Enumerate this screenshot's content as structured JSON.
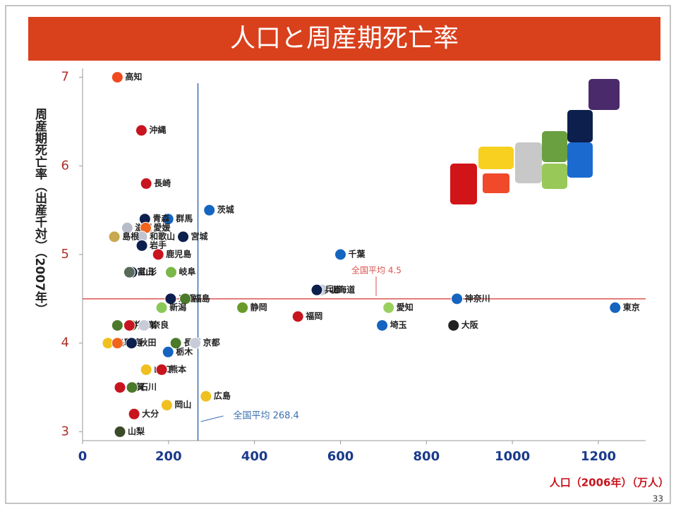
{
  "chart_data": {
    "type": "scatter",
    "title": "人口と周産期死亡率",
    "y_label": "周産期死亡率（出産千対）（2007年）",
    "x_label": "人口（2006年）（万人）",
    "page_number": "33",
    "xlim": [
      0,
      1310
    ],
    "xticks": [
      0,
      200,
      400,
      600,
      800,
      1000,
      1200
    ],
    "ylim": [
      2.9,
      7.1
    ],
    "yticks": [
      3,
      4,
      5,
      6,
      7
    ],
    "avg_x": {
      "label": "全国平均 268.4",
      "value": 268.4,
      "color": "#3a6fb0"
    },
    "avg_y": {
      "label": "全国平均 4.5",
      "value": 4.5,
      "color": "#d9534f"
    },
    "points": [
      {
        "name": "高知",
        "x": 81,
        "y": 7.0,
        "color": "#f04a1e"
      },
      {
        "name": "沖縄",
        "x": 137,
        "y": 6.4,
        "color": "#c8141e"
      },
      {
        "name": "長崎",
        "x": 148,
        "y": 5.8,
        "color": "#c8141e"
      },
      {
        "name": "茨城",
        "x": 295,
        "y": 5.5,
        "color": "#1565c0"
      },
      {
        "name": "群馬",
        "x": 199,
        "y": 5.4,
        "color": "#1565c0"
      },
      {
        "name": "青森",
        "x": 145,
        "y": 5.4,
        "color": "#0d1f4d"
      },
      {
        "name": "滋賀",
        "x": 104,
        "y": 5.3,
        "color": "#b8bcc8"
      },
      {
        "name": "愛媛",
        "x": 147,
        "y": 5.3,
        "color": "#f0641e"
      },
      {
        "name": "和歌山",
        "x": 138,
        "y": 5.2,
        "color": "#c0c4d0"
      },
      {
        "name": "宮城",
        "x": 234,
        "y": 5.2,
        "color": "#0d1f4d"
      },
      {
        "name": "島根",
        "x": 74,
        "y": 5.2,
        "color": "#c8a850"
      },
      {
        "name": "岩手",
        "x": 138,
        "y": 5.1,
        "color": "#0d1f4d"
      },
      {
        "name": "鹿児島",
        "x": 176,
        "y": 5.0,
        "color": "#c8141e"
      },
      {
        "name": "千葉",
        "x": 600,
        "y": 5.0,
        "color": "#1565c0"
      },
      {
        "name": "山形",
        "x": 115,
        "y": 4.8,
        "color": "#0d1f4d"
      },
      {
        "name": "富山",
        "x": 109,
        "y": 4.8,
        "color": "#5a6a5a"
      },
      {
        "name": "岐阜",
        "x": 206,
        "y": 4.8,
        "color": "#7ab648"
      },
      {
        "name": "北海道",
        "x": 557,
        "y": 4.6,
        "color": "#c8ccd8"
      },
      {
        "name": "兵庫",
        "x": 545,
        "y": 4.6,
        "color": "#0d1f4d"
      },
      {
        "name": "三重",
        "x": 205,
        "y": 4.5,
        "color": "#0d1f4d"
      },
      {
        "name": "福島",
        "x": 239,
        "y": 4.5,
        "color": "#4a7a2a"
      },
      {
        "name": "神奈川",
        "x": 871,
        "y": 4.5,
        "color": "#1565c0"
      },
      {
        "name": "新潟",
        "x": 184,
        "y": 4.4,
        "color": "#8ac858"
      },
      {
        "name": "静岡",
        "x": 372,
        "y": 4.4,
        "color": "#6a9a2a"
      },
      {
        "name": "愛知",
        "x": 712,
        "y": 4.4,
        "color": "#9ad060"
      },
      {
        "name": "東京",
        "x": 1239,
        "y": 4.4,
        "color": "#1565c0"
      },
      {
        "name": "福岡",
        "x": 501,
        "y": 4.3,
        "color": "#c8141e"
      },
      {
        "name": "香川",
        "x": 114,
        "y": 4.2,
        "color": "#4a7a2a"
      },
      {
        "name": "福井",
        "x": 81,
        "y": 4.2,
        "color": "#4a7a2a"
      },
      {
        "name": "宮崎",
        "x": 109,
        "y": 4.2,
        "color": "#c8141e"
      },
      {
        "name": "奈良",
        "x": 143,
        "y": 4.2,
        "color": "#c8ccd8"
      },
      {
        "name": "埼玉",
        "x": 697,
        "y": 4.2,
        "color": "#1565c0"
      },
      {
        "name": "大阪",
        "x": 863,
        "y": 4.2,
        "color": "#222222"
      },
      {
        "name": "鳥取",
        "x": 59,
        "y": 4.0,
        "color": "#f0c020"
      },
      {
        "name": "徳島",
        "x": 81,
        "y": 4.0,
        "color": "#f0641e"
      },
      {
        "name": "秋田",
        "x": 114,
        "y": 4.0,
        "color": "#0d1f4d"
      },
      {
        "name": "長野",
        "x": 217,
        "y": 4.0,
        "color": "#4a7a2a"
      },
      {
        "name": "京都",
        "x": 262,
        "y": 4.0,
        "color": "#c8ccd8"
      },
      {
        "name": "栃木",
        "x": 199,
        "y": 3.9,
        "color": "#1565c0"
      },
      {
        "name": "山口",
        "x": 148,
        "y": 3.7,
        "color": "#f0c020"
      },
      {
        "name": "熊本",
        "x": 184,
        "y": 3.7,
        "color": "#c8141e"
      },
      {
        "name": "佐賀",
        "x": 87,
        "y": 3.5,
        "color": "#c8141e"
      },
      {
        "name": "石川",
        "x": 115,
        "y": 3.5,
        "color": "#4a7a2a"
      },
      {
        "name": "広島",
        "x": 287,
        "y": 3.4,
        "color": "#f0c020"
      },
      {
        "name": "岡山",
        "x": 196,
        "y": 3.3,
        "color": "#f0c020"
      },
      {
        "name": "大分",
        "x": 120,
        "y": 3.2,
        "color": "#c8141e"
      },
      {
        "name": "山梨",
        "x": 87,
        "y": 3.0,
        "color": "#3a4a2a"
      }
    ]
  }
}
